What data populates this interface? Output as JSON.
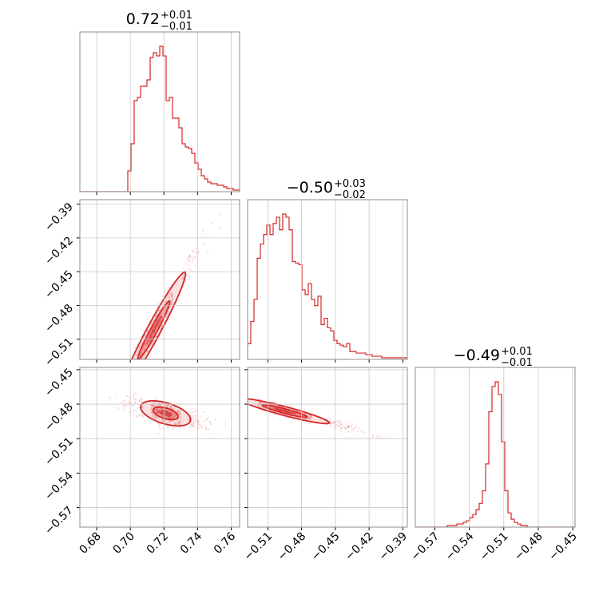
{
  "chart_data": {
    "type": "corner",
    "color": "#d62728",
    "parameters": [
      {
        "title": "0.72",
        "title_plus": "+0.01",
        "title_minus": "−0.01",
        "range": [
          0.67,
          0.765
        ],
        "ticks": [
          0.68,
          0.7,
          0.72,
          0.74,
          0.76
        ],
        "tick_labels": [
          "0.68",
          "0.70",
          "0.72",
          "0.74",
          "0.76"
        ]
      },
      {
        "title": "−0.50",
        "title_plus": "+0.03",
        "title_minus": "−0.02",
        "range": [
          -0.528,
          -0.386
        ],
        "ticks": [
          -0.51,
          -0.48,
          -0.45,
          -0.42,
          -0.39
        ],
        "tick_labels": [
          "−0.51",
          "−0.48",
          "−0.45",
          "−0.42",
          "−0.39"
        ]
      },
      {
        "title": "−0.49",
        "title_plus": "+0.01",
        "title_minus": "−0.01",
        "range": [
          -0.587,
          -0.448
        ],
        "ticks": [
          -0.57,
          -0.54,
          -0.51,
          -0.48,
          -0.45
        ],
        "tick_labels": [
          "−0.57",
          "−0.54",
          "−0.51",
          "−0.48",
          "−0.45"
        ]
      }
    ],
    "histograms": [
      {
        "param": 0,
        "bin_edges_start": 0.67,
        "bin_width": 0.0019,
        "counts": [
          0,
          0,
          0,
          0,
          0,
          0,
          0,
          0,
          0,
          0,
          0,
          0,
          0,
          0,
          0,
          0.13,
          0.3,
          0.57,
          0.59,
          0.66,
          0.66,
          0.7,
          0.84,
          0.87,
          0.85,
          0.91,
          0.85,
          0.57,
          0.59,
          0.46,
          0.46,
          0.4,
          0.3,
          0.28,
          0.27,
          0.24,
          0.18,
          0.14,
          0.1,
          0.08,
          0.06,
          0.05,
          0.05,
          0.04,
          0.04,
          0.03,
          0.02,
          0.02,
          0.01,
          0.01
        ]
      },
      {
        "param": 1,
        "bin_edges_start": -0.528,
        "bin_width": 0.00284,
        "counts": [
          0.1,
          0.24,
          0.38,
          0.64,
          0.73,
          0.79,
          0.85,
          0.79,
          0.86,
          0.9,
          0.82,
          0.92,
          0.9,
          0.82,
          0.62,
          0.61,
          0.6,
          0.44,
          0.41,
          0.48,
          0.38,
          0.34,
          0.4,
          0.22,
          0.26,
          0.2,
          0.18,
          0.12,
          0.1,
          0.09,
          0.08,
          0.1,
          0.05,
          0.05,
          0.04,
          0.04,
          0.04,
          0.03,
          0.03,
          0.02,
          0.02,
          0.02,
          0.01,
          0.01,
          0.01,
          0.01,
          0.01,
          0.01,
          0.01,
          0.01
        ]
      },
      {
        "param": 2,
        "bin_edges_start": -0.587,
        "bin_width": 0.00278,
        "counts": [
          0,
          0,
          0,
          0,
          0,
          0,
          0,
          0,
          0,
          0,
          0.01,
          0.01,
          0.01,
          0.02,
          0.02,
          0.03,
          0.04,
          0.06,
          0.08,
          0.11,
          0.15,
          0.23,
          0.4,
          0.73,
          0.89,
          0.92,
          0.84,
          0.54,
          0.23,
          0.09,
          0.05,
          0.03,
          0.02,
          0.01,
          0.01,
          0,
          0,
          0,
          0,
          0,
          0,
          0,
          0,
          0,
          0,
          0,
          0,
          0,
          0,
          0
        ]
      }
    ],
    "contours_2d": [
      {
        "x_param": 0,
        "y_param": 1,
        "mean": [
          0.714,
          -0.502
        ],
        "sigma": [
          0.0095,
          0.026
        ],
        "rho": 0.97,
        "levels": [
          0.39,
          0.86
        ]
      },
      {
        "x_param": 0,
        "y_param": 2,
        "mean": [
          0.721,
          -0.488
        ],
        "sigma": [
          0.0075,
          0.0055
        ],
        "rho": -0.5,
        "levels": [
          0.39,
          0.86
        ]
      },
      {
        "x_param": 1,
        "y_param": 2,
        "mean": [
          -0.495,
          -0.486
        ],
        "sigma": [
          0.02,
          0.0055
        ],
        "rho": -0.93,
        "levels": [
          0.39,
          0.86
        ]
      }
    ],
    "grid": true
  }
}
